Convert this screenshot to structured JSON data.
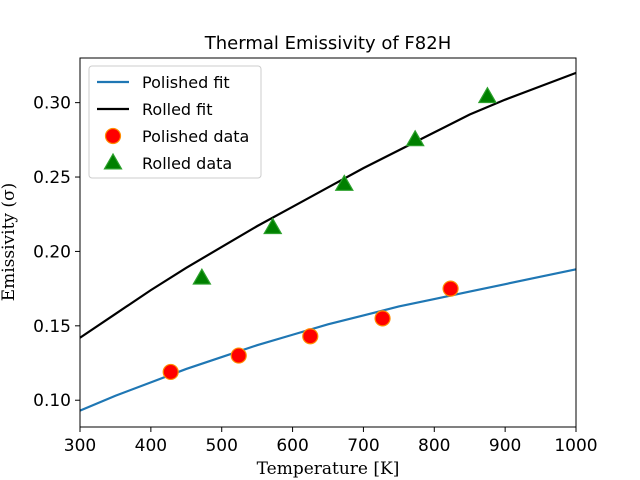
{
  "chart_data": {
    "type": "scatter",
    "title": "Thermal Emissivity of F82H",
    "xlabel": "Temperature [K]",
    "ylabel": "Emissivity (σ)",
    "xlim": [
      300,
      1000
    ],
    "ylim": [
      0.082,
      0.33
    ],
    "xticks": [
      300,
      400,
      500,
      600,
      700,
      800,
      900,
      1000
    ],
    "yticks": [
      0.1,
      0.15,
      0.2,
      0.25,
      0.3
    ],
    "ytick_labels": [
      "0.10",
      "0.15",
      "0.20",
      "0.25",
      "0.30"
    ],
    "grid": false,
    "legend_position": "top-left",
    "series": [
      {
        "name": "Polished fit",
        "kind": "line",
        "color": "#1f77b4",
        "x": [
          300,
          350,
          400,
          450,
          500,
          550,
          600,
          650,
          700,
          750,
          800,
          850,
          900,
          950,
          1000
        ],
        "y": [
          0.093,
          0.103,
          0.112,
          0.121,
          0.129,
          0.137,
          0.144,
          0.151,
          0.157,
          0.163,
          0.168,
          0.173,
          0.178,
          0.183,
          0.188
        ]
      },
      {
        "name": "Rolled fit",
        "kind": "line",
        "color": "#000000",
        "x": [
          300,
          350,
          400,
          450,
          500,
          550,
          600,
          650,
          700,
          750,
          800,
          850,
          900,
          950,
          1000
        ],
        "y": [
          0.142,
          0.158,
          0.174,
          0.189,
          0.203,
          0.217,
          0.23,
          0.243,
          0.256,
          0.268,
          0.28,
          0.292,
          0.302,
          0.311,
          0.32
        ]
      },
      {
        "name": "Polished data",
        "kind": "marker",
        "marker": "circle",
        "color": "#ff0000",
        "edge_color": "#ff8c00",
        "x": [
          428,
          524,
          625,
          727,
          823
        ],
        "y": [
          0.119,
          0.13,
          0.143,
          0.155,
          0.175
        ]
      },
      {
        "name": "Rolled data",
        "kind": "marker",
        "marker": "triangle",
        "color": "#008000",
        "edge_color": "#2ca02c",
        "x": [
          472,
          572,
          673,
          773,
          875
        ],
        "y": [
          0.182,
          0.216,
          0.245,
          0.275,
          0.304
        ]
      }
    ]
  }
}
